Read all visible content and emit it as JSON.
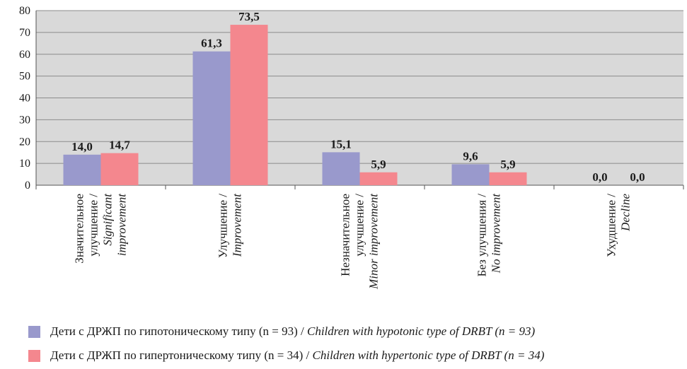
{
  "chart_data": {
    "type": "bar",
    "ylim": [
      0,
      80
    ],
    "yticks": [
      "0",
      "10",
      "20",
      "30",
      "40",
      "50",
      "60",
      "70",
      "80"
    ],
    "grid": true,
    "categories": [
      {
        "ru": [
          "Значительное",
          "улучшение /"
        ],
        "en": [
          "Significant",
          "improvement"
        ]
      },
      {
        "ru": [
          "Улучшение /"
        ],
        "en": [
          "Improvement"
        ]
      },
      {
        "ru": [
          "Незначительное",
          "улучшение /"
        ],
        "en": [
          "Minor improvement"
        ]
      },
      {
        "ru": [
          "Без улучшения /"
        ],
        "en": [
          "No improvement"
        ]
      },
      {
        "ru": [
          "Ухудшение /"
        ],
        "en": [
          "Decline"
        ]
      }
    ],
    "series": [
      {
        "name_ru": "Дети с ДРЖП по гипотоническому типу (n = 93) / ",
        "name_en": "Children with hypotonic type of DRBT (n = 93)",
        "color": "#9999cc",
        "values": [
          14.0,
          61.3,
          15.1,
          9.6,
          0.0
        ],
        "labels": [
          "14,0",
          "61,3",
          "15,1",
          "9,6",
          "0,0"
        ]
      },
      {
        "name_ru": "Дети с ДРЖП по гипертоническому типу (n = 34) / ",
        "name_en": "Children with hypertonic type of DRBT (n = 34)",
        "color": "#f4878e",
        "values": [
          14.7,
          73.5,
          5.9,
          5.9,
          0.0
        ],
        "labels": [
          "14,7",
          "73,5",
          "5,9",
          "5,9",
          "0,0"
        ]
      }
    ],
    "plot_background": "#d9d9d9",
    "legend_position": "bottom"
  }
}
